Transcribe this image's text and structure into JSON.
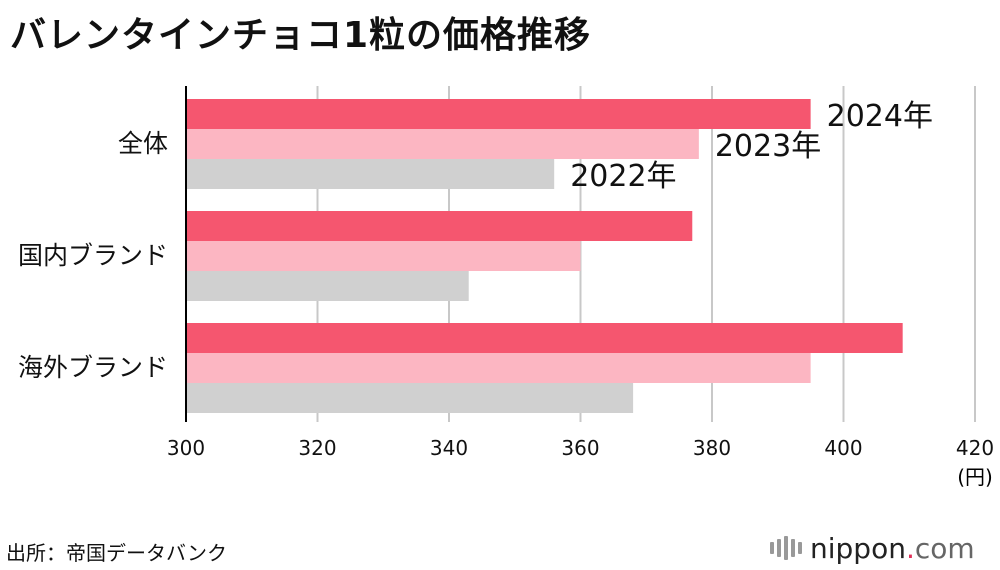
{
  "title": "バレンタインチョコ1粒の価格推移",
  "source": "出所：帝国データバンク",
  "logo": {
    "name": "nippon",
    "dot": ".",
    "suffix": "com"
  },
  "colors": {
    "2024": "#f5566f",
    "2023": "#fcb6c2",
    "2022": "#d0d0d0",
    "grid": "#c8c8c8",
    "axis": "#000000"
  },
  "chart_data": {
    "type": "bar",
    "orientation": "horizontal",
    "categories": [
      "全体",
      "国内ブランド",
      "海外ブランド"
    ],
    "series": [
      {
        "name": "2024年",
        "values": [
          395,
          377,
          409
        ]
      },
      {
        "name": "2023年",
        "values": [
          378,
          360,
          395
        ]
      },
      {
        "name": "2022年",
        "values": [
          356,
          343,
          368
        ]
      }
    ],
    "xlim": [
      300,
      420
    ],
    "xticks": [
      "300",
      "320",
      "340",
      "360",
      "380",
      "400",
      "420"
    ],
    "x_unit": "(円)",
    "grid": true
  }
}
